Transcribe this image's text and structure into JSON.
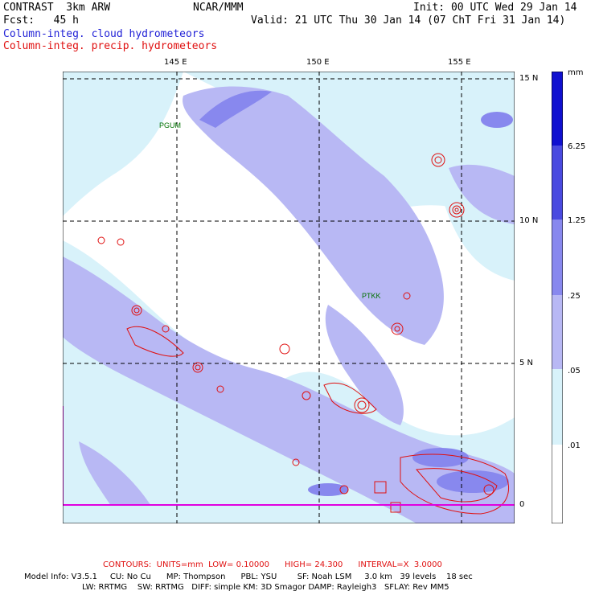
{
  "header": {
    "model": "CONTRAST  3km ARW",
    "center": "NCAR/MMM",
    "init": "Init: 00 UTC Wed 29 Jan 14",
    "fcst": "Fcst:   45 h",
    "valid": "Valid: 21 UTC Thu 30 Jan 14 (07 ChT Fri 31 Jan 14)",
    "field_cloud": "Column-integ. cloud hydrometeors",
    "field_precip": "Column-integ. precip. hydrometeors"
  },
  "axes": {
    "lon_labels": [
      "145 E",
      "150 E",
      "155 E"
    ],
    "lat_labels": [
      "15 N",
      "10 N",
      "5 N",
      "0"
    ]
  },
  "stations": [
    "PGUM",
    "PTKK"
  ],
  "colorbar": {
    "unit": "mm",
    "levels": [
      "6.25",
      "1.25",
      ".25",
      ".05",
      ".01"
    ],
    "colors": [
      "#1010d0",
      "#4a4ae0",
      "#8888ee",
      "#b8b8f4",
      "#d8f2fa",
      "#ffffff"
    ]
  },
  "footer": {
    "contours": "CONTOURS:  UNITS=mm  LOW= 0.10000      HIGH= 24.300      INTERVAL=X  3.0000",
    "line1": "Model Info: V3.5.1     CU: No Cu      MP: Thompson      PBL: YSU        SF: Noah LSM     3.0 km   39 levels    18 sec",
    "line2": "LW: RRTMG    SW: RRTMG   DIFF: simple KM: 3D Smagor DAMP: Rayleigh3   SFLAY: Rev MM5"
  },
  "colors": {
    "cloud_light": "#d8f2fa",
    "cloud_mid": "#b8b8f4",
    "cloud_dark": "#8888ee",
    "precip_contour": "#e01010",
    "boundary": "#e000e0"
  }
}
